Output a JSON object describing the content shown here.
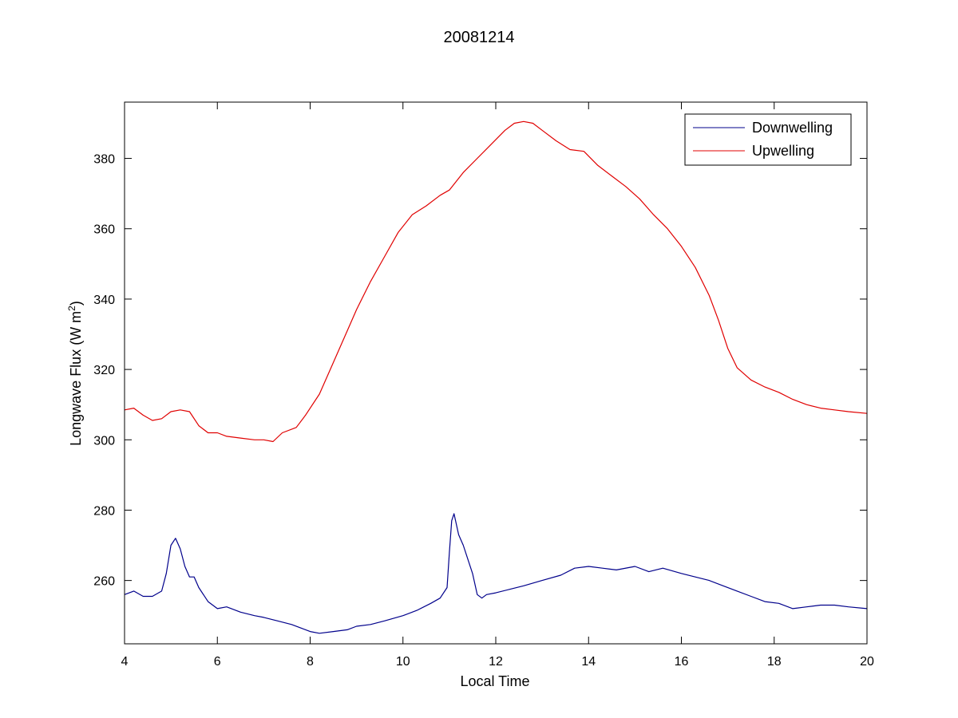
{
  "chart_data": {
    "type": "line",
    "title": "20081214",
    "xlabel": "Local Time",
    "ylabel_main": "Longwave Flux (W m",
    "ylabel_sup": "2",
    "ylabel_end": ")",
    "xlim": [
      4,
      20
    ],
    "ylim": [
      242,
      396
    ],
    "xticks": [
      4,
      6,
      8,
      10,
      12,
      14,
      16,
      18,
      20
    ],
    "yticks": [
      260,
      280,
      300,
      320,
      340,
      360,
      380
    ],
    "grid": false,
    "legend_position": "top-right",
    "series": [
      {
        "name": "Downwelling",
        "color": "#00008b",
        "x": [
          4,
          4.2,
          4.4,
          4.6,
          4.8,
          4.9,
          5.0,
          5.1,
          5.2,
          5.3,
          5.4,
          5.5,
          5.6,
          5.8,
          6.0,
          6.2,
          6.5,
          6.8,
          7.0,
          7.3,
          7.6,
          7.8,
          8.0,
          8.2,
          8.5,
          8.8,
          9.0,
          9.3,
          9.6,
          10.0,
          10.3,
          10.6,
          10.8,
          10.95,
          11.0,
          11.05,
          11.1,
          11.2,
          11.3,
          11.4,
          11.5,
          11.6,
          11.7,
          11.8,
          12.0,
          12.3,
          12.6,
          13.0,
          13.4,
          13.7,
          14.0,
          14.3,
          14.6,
          15.0,
          15.3,
          15.6,
          16.0,
          16.3,
          16.6,
          16.9,
          17.2,
          17.5,
          17.8,
          18.1,
          18.4,
          18.7,
          19.0,
          19.3,
          19.6,
          20.0
        ],
        "y": [
          256,
          257,
          255.5,
          255.5,
          257,
          262,
          270,
          272,
          269,
          264,
          261,
          261,
          258,
          254,
          252,
          252.5,
          251,
          250,
          249.5,
          248.5,
          247.5,
          246.5,
          245.5,
          245,
          245.5,
          246,
          247,
          247.5,
          248.5,
          250,
          251.5,
          253.5,
          255,
          258,
          268,
          277,
          279,
          273,
          270,
          266,
          262,
          256,
          255,
          256,
          256.5,
          257.5,
          258.5,
          260,
          261.5,
          263.5,
          264,
          263.5,
          263,
          264,
          262.5,
          263.5,
          262,
          261,
          260,
          258.5,
          257,
          255.5,
          254,
          253.5,
          252,
          252.5,
          253,
          253,
          252.5,
          252
        ]
      },
      {
        "name": "Upwelling",
        "color": "#e00000",
        "x": [
          4,
          4.2,
          4.4,
          4.6,
          4.8,
          5.0,
          5.2,
          5.4,
          5.6,
          5.8,
          6.0,
          6.2,
          6.5,
          6.8,
          7.0,
          7.2,
          7.4,
          7.7,
          7.9,
          8.2,
          8.5,
          8.8,
          9.0,
          9.3,
          9.6,
          9.9,
          10.2,
          10.5,
          10.8,
          11.0,
          11.3,
          11.6,
          11.9,
          12.2,
          12.4,
          12.6,
          12.8,
          13.0,
          13.3,
          13.6,
          13.9,
          14.2,
          14.5,
          14.8,
          15.1,
          15.4,
          15.7,
          16.0,
          16.3,
          16.6,
          16.8,
          17.0,
          17.2,
          17.5,
          17.8,
          18.1,
          18.4,
          18.7,
          19.0,
          19.3,
          19.6,
          20.0
        ],
        "y": [
          308.5,
          309,
          307,
          305.5,
          306,
          308,
          308.5,
          308,
          304,
          302,
          302,
          301,
          300.5,
          300,
          300,
          299.5,
          302,
          303.5,
          307,
          313,
          322,
          331,
          337,
          345,
          352,
          359,
          364,
          366.5,
          369.5,
          371,
          376,
          380,
          384,
          388,
          390,
          390.5,
          390,
          388,
          385,
          382.5,
          382,
          378,
          375,
          372,
          368.5,
          364,
          360,
          355,
          349,
          341,
          334,
          326,
          320.5,
          317,
          315,
          313.5,
          311.5,
          310,
          309,
          308.5,
          308,
          307.5
        ]
      }
    ]
  }
}
